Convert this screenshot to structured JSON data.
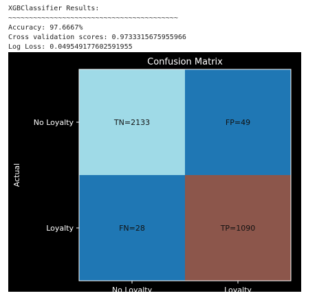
{
  "output": {
    "lines": [
      "XGBClassifier Results:",
      "~~~~~~~~~~~~~~~~~~~~~~~~~~~~~~~~~~~~~~~~~",
      "Accuracy: 97.6667%",
      "Cross validation scores: 0.9733315675955966",
      "Log Loss: 0.049549177602591955"
    ]
  },
  "chart_data": {
    "type": "heatmap",
    "title": "Confusion Matrix",
    "ylabel": "Actual",
    "rows": [
      "No Loyalty",
      "Loyalty"
    ],
    "columns": [
      "No Loyalty",
      "Loyalty"
    ],
    "values": [
      [
        2133,
        49
      ],
      [
        28,
        1090
      ]
    ],
    "value_labels": [
      [
        "TN=2133",
        "FP=49"
      ],
      [
        "FN=28",
        "TP=1090"
      ]
    ],
    "cell_colors": [
      [
        "#9fdae7",
        "#1f77b4"
      ],
      [
        "#1f77b4",
        "#8c564b"
      ]
    ]
  }
}
